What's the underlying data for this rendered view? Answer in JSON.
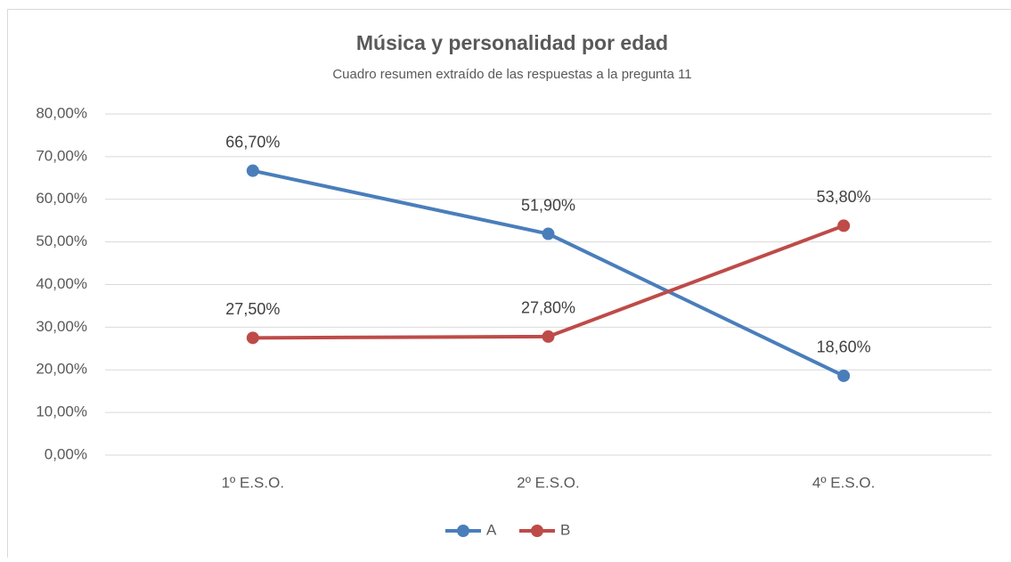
{
  "chart_data": {
    "type": "line",
    "title": "Música y personalidad por edad",
    "subtitle": "Cuadro resumen extraído de las respuestas a la pregunta 11",
    "categories": [
      "1º E.S.O.",
      "2º E.S.O.",
      "4º E.S.O."
    ],
    "series": [
      {
        "name": "A",
        "color": "#4a7ebb",
        "values": [
          66.7,
          51.9,
          18.6
        ],
        "value_labels": [
          "66,70%",
          "51,90%",
          "18,60%"
        ]
      },
      {
        "name": "B",
        "color": "#be4b48",
        "values": [
          27.5,
          27.8,
          53.8
        ],
        "value_labels": [
          "27,50%",
          "27,80%",
          "53,80%"
        ]
      }
    ],
    "ylim": [
      0,
      80
    ],
    "yticks": [
      {
        "value": 0,
        "label": "0,00%"
      },
      {
        "value": 10,
        "label": "10,00%"
      },
      {
        "value": 20,
        "label": "20,00%"
      },
      {
        "value": 30,
        "label": "30,00%"
      },
      {
        "value": 40,
        "label": "40,00%"
      },
      {
        "value": 50,
        "label": "50,00%"
      },
      {
        "value": 60,
        "label": "60,00%"
      },
      {
        "value": 70,
        "label": "70,00%"
      },
      {
        "value": 80,
        "label": "80,00%"
      }
    ],
    "grid": true,
    "legend": "bottom"
  }
}
